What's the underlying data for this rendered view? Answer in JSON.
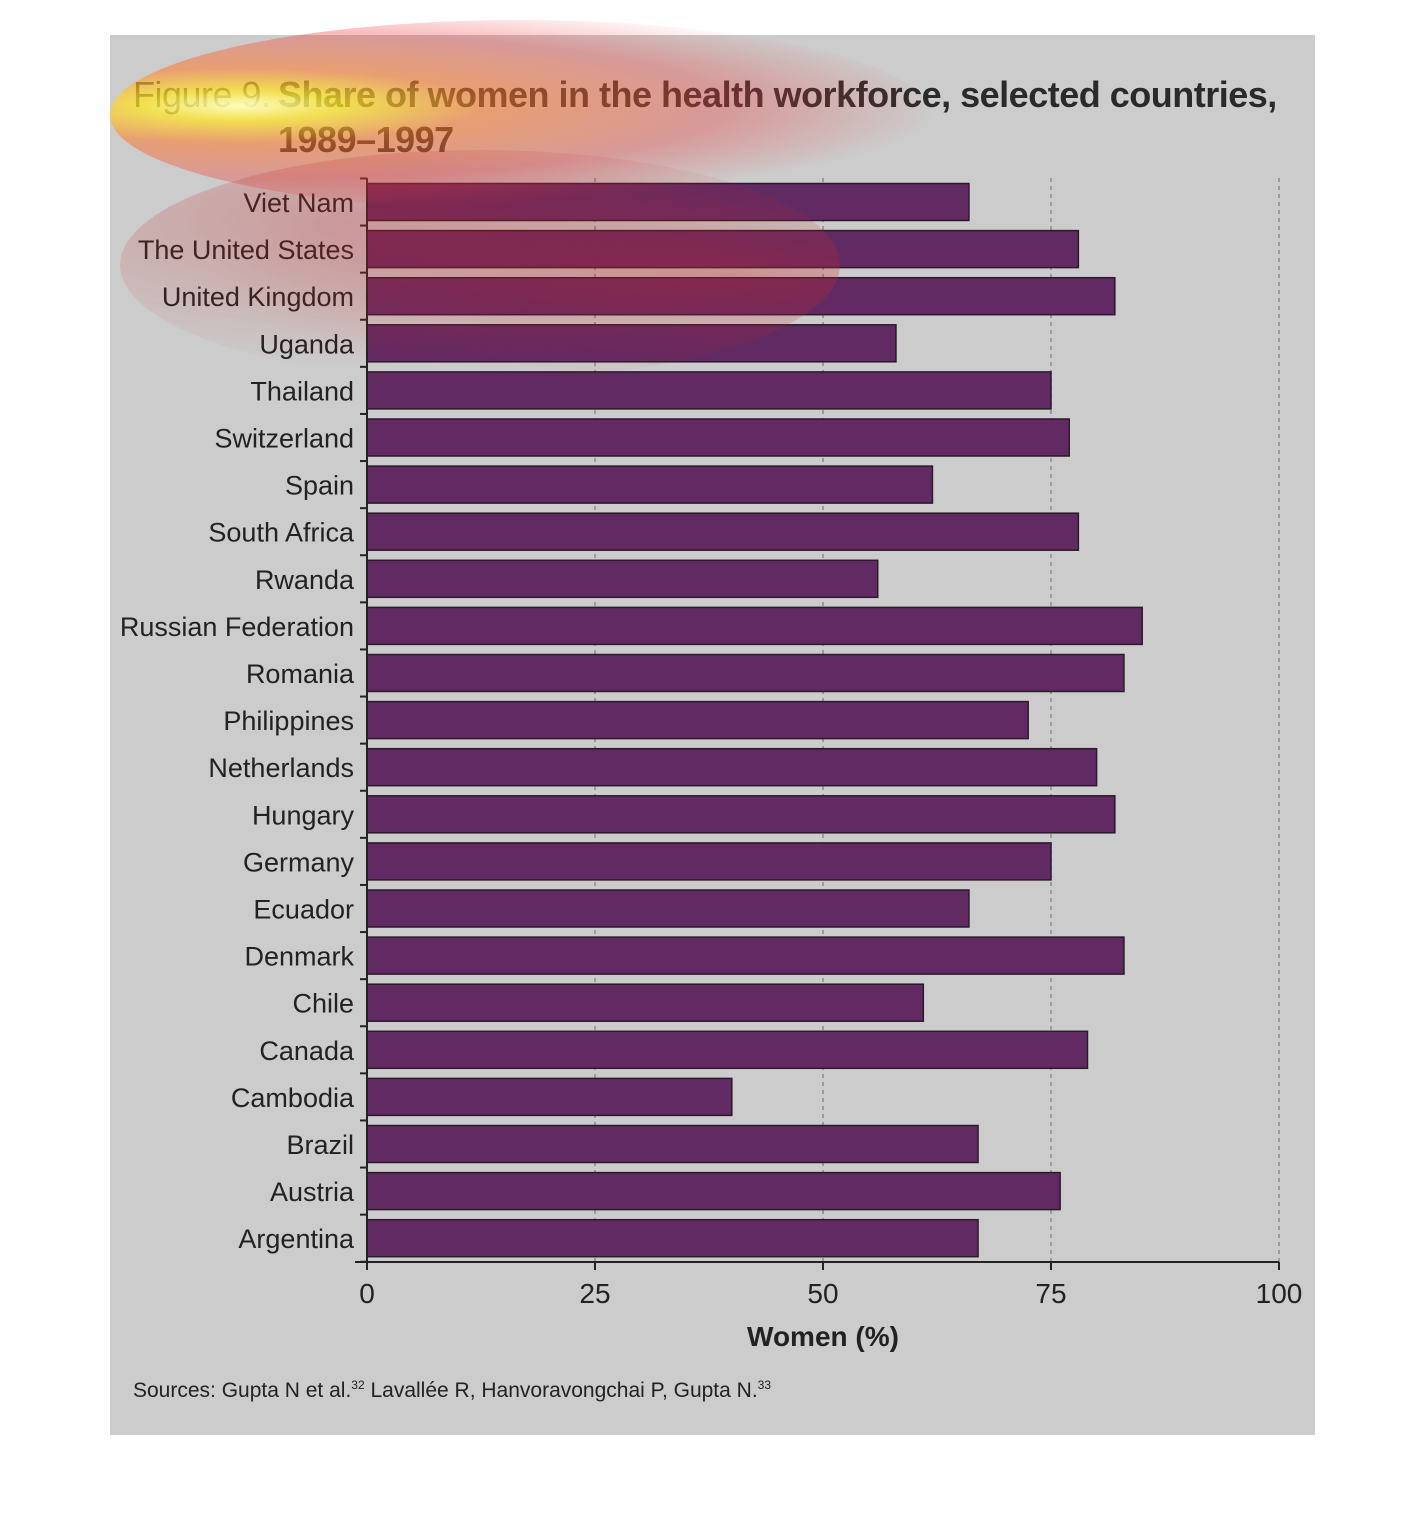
{
  "figure": {
    "label": "Figure 9.",
    "title_line1": "Share of women in the health workforce, selected countries,",
    "title_line2": "1989–1997",
    "source_text": "Sources: Gupta N et al.",
    "source_ref1": "32",
    "source_text2": " Lavallée R, Hanvoravongchai P, Gupta N.",
    "source_ref2": "33"
  },
  "chart_data": {
    "type": "bar",
    "orientation": "horizontal",
    "title": "Share of women in the health workforce, selected countries, 1989–1997",
    "xlabel": "Women (%)",
    "ylabel": "",
    "xlim": [
      0,
      100
    ],
    "xticks": [
      0,
      25,
      50,
      75,
      100
    ],
    "grid": "vertical dashed at 25, 50, 75, 100",
    "bar_color": "#622a63",
    "panel_color": "#cccccc",
    "categories": [
      "Viet Nam",
      "The United States",
      "United Kingdom",
      "Uganda",
      "Thailand",
      "Switzerland",
      "Spain",
      "South Africa",
      "Rwanda",
      "Russian Federation",
      "Romania",
      "Philippines",
      "Netherlands",
      "Hungary",
      "Germany",
      "Ecuador",
      "Denmark",
      "Chile",
      "Canada",
      "Cambodia",
      "Brazil",
      "Austria",
      "Argentina"
    ],
    "values": [
      66,
      78,
      82,
      58,
      75,
      77,
      62,
      78,
      56,
      85,
      83,
      72.5,
      80,
      82,
      75,
      66,
      83,
      61,
      79,
      40,
      67,
      76,
      67
    ]
  }
}
